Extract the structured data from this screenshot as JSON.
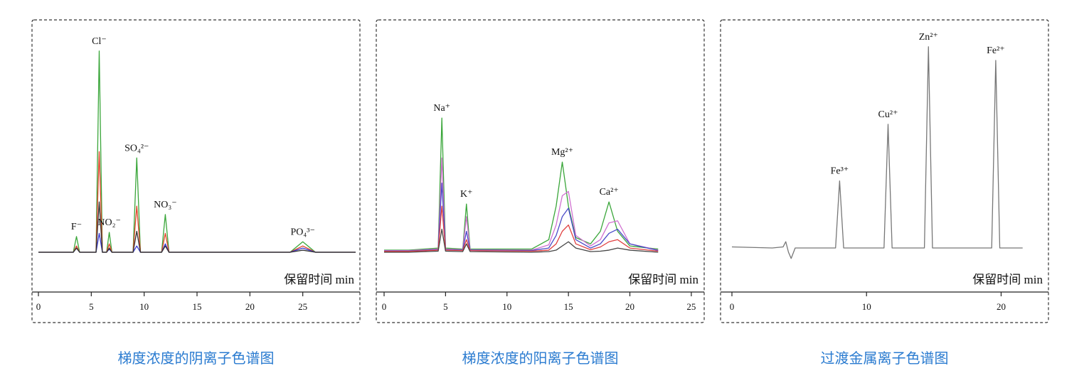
{
  "chart_data": [
    {
      "type": "line",
      "caption": "梯度浓度的阴离子色谱图",
      "x_label": "保留时间 min",
      "xlim": [
        0,
        30
      ],
      "ylim": [
        0,
        100
      ],
      "xticks": [
        0,
        5,
        10,
        15,
        20,
        25
      ],
      "x": [
        0,
        3.3,
        3.6,
        3.9,
        5.45,
        5.75,
        6.05,
        6.45,
        6.7,
        6.95,
        8.95,
        9.3,
        9.65,
        11.65,
        12.0,
        12.35,
        23.8,
        25.0,
        26.2,
        30
      ],
      "series": [
        {
          "color": "#3aa63a",
          "values": [
            0,
            0,
            7.5,
            0,
            0,
            96,
            0,
            0,
            9.5,
            0,
            0,
            45,
            0,
            0,
            18,
            0,
            0,
            5,
            0,
            0
          ]
        },
        {
          "color": "#e0452a",
          "values": [
            0,
            0,
            3,
            0,
            0,
            48,
            0,
            0,
            4,
            0,
            0,
            22,
            0,
            0,
            9,
            0,
            0,
            3,
            0,
            0
          ]
        },
        {
          "color": "#3a3ad0",
          "values": [
            0,
            0,
            2,
            0,
            0,
            9,
            0,
            0,
            1.5,
            0,
            0,
            3,
            0,
            0,
            4,
            0,
            0,
            2,
            0,
            0
          ]
        },
        {
          "color": "#333333",
          "values": [
            0,
            0,
            2,
            0,
            0,
            24,
            0,
            0,
            2,
            0,
            0,
            10,
            0,
            0,
            3,
            0,
            0,
            1,
            0,
            0
          ]
        }
      ],
      "peak_labels": [
        {
          "text": "F⁻",
          "x": 3.6
        },
        {
          "text": "Cl⁻",
          "x": 5.75
        },
        {
          "text": "NO₂⁻",
          "x": 6.7
        },
        {
          "text": "SO₄²⁻",
          "x": 9.3
        },
        {
          "text": "NO₃⁻",
          "x": 12.0
        },
        {
          "text": "PO₄³⁻",
          "x": 25.0
        }
      ]
    },
    {
      "type": "line",
      "caption": "梯度浓度的阳离子色谱图",
      "x_label": "保留时间 min",
      "xlim": [
        0,
        25.7
      ],
      "ylim": [
        0,
        100
      ],
      "xticks": [
        0,
        5,
        10,
        15,
        20,
        25
      ],
      "x": [
        0,
        2.0,
        4.4,
        4.7,
        5.0,
        6.4,
        6.7,
        7.0,
        12.0,
        13.4,
        14.0,
        14.5,
        15.0,
        15.6,
        16.8,
        17.6,
        18.3,
        19.0,
        20.0,
        22.3
      ],
      "series": [
        {
          "color": "#3aa63a",
          "values": [
            1,
            1,
            2,
            64,
            2,
            1.5,
            23,
            1.5,
            1.5,
            6,
            22,
            43,
            22,
            7,
            4,
            10,
            24,
            10,
            3,
            1.5
          ]
        },
        {
          "color": "#d070d0",
          "values": [
            0.8,
            0.8,
            1.5,
            45,
            1.5,
            1.2,
            17,
            1.2,
            1,
            3.5,
            13,
            27,
            29,
            8,
            3,
            6,
            14,
            15,
            4,
            1
          ]
        },
        {
          "color": "#4a4ac8",
          "values": [
            0.6,
            0.6,
            1.2,
            33,
            1.2,
            1,
            10,
            1,
            0.8,
            2,
            8,
            17,
            21,
            6,
            2,
            4,
            9,
            11,
            4,
            0.8
          ]
        },
        {
          "color": "#e04040",
          "values": [
            0.4,
            0.4,
            1,
            22,
            1,
            0.8,
            6,
            0.8,
            0.5,
            1,
            4,
            10,
            13,
            4,
            1.2,
            2.5,
            5,
            6,
            2,
            0.5
          ]
        },
        {
          "color": "#444444",
          "values": [
            0,
            0,
            0.5,
            11,
            0.5,
            0.3,
            4,
            0.3,
            0,
            0.3,
            1,
            3,
            5,
            2,
            0.3,
            0.5,
            1,
            2,
            1,
            0
          ]
        }
      ],
      "peak_labels": [
        {
          "text": "Na⁺",
          "x": 4.7
        },
        {
          "text": "K⁺",
          "x": 6.7
        },
        {
          "text": "Mg²⁺",
          "x": 14.5
        },
        {
          "text": "Ca²⁺",
          "x": 18.3
        }
      ]
    },
    {
      "type": "line",
      "caption": "过渡金属离子色谱图",
      "x_label": "保留时间 min",
      "xlim": [
        0,
        23.2
      ],
      "ylim": [
        0,
        100
      ],
      "xticks": [
        0,
        10,
        20
      ],
      "x": [
        0,
        3.0,
        3.8,
        4.0,
        4.2,
        4.4,
        4.7,
        7.7,
        8.0,
        8.3,
        11.3,
        11.6,
        11.9,
        14.3,
        14.6,
        14.9,
        19.3,
        19.6,
        19.9,
        21.6
      ],
      "series": [
        {
          "color": "#777777",
          "values": [
            0.5,
            0,
            0.5,
            3,
            -2,
            -5,
            0,
            0,
            32,
            0,
            0,
            59,
            0,
            0,
            96,
            0,
            0,
            89.5,
            0,
            0
          ]
        }
      ],
      "peak_labels": [
        {
          "text": "Fe³⁺",
          "x": 8.0
        },
        {
          "text": "Cu²⁺",
          "x": 11.6
        },
        {
          "text": "Zn²⁺",
          "x": 14.6
        },
        {
          "text": "Fe²⁺",
          "x": 19.6
        }
      ]
    }
  ]
}
